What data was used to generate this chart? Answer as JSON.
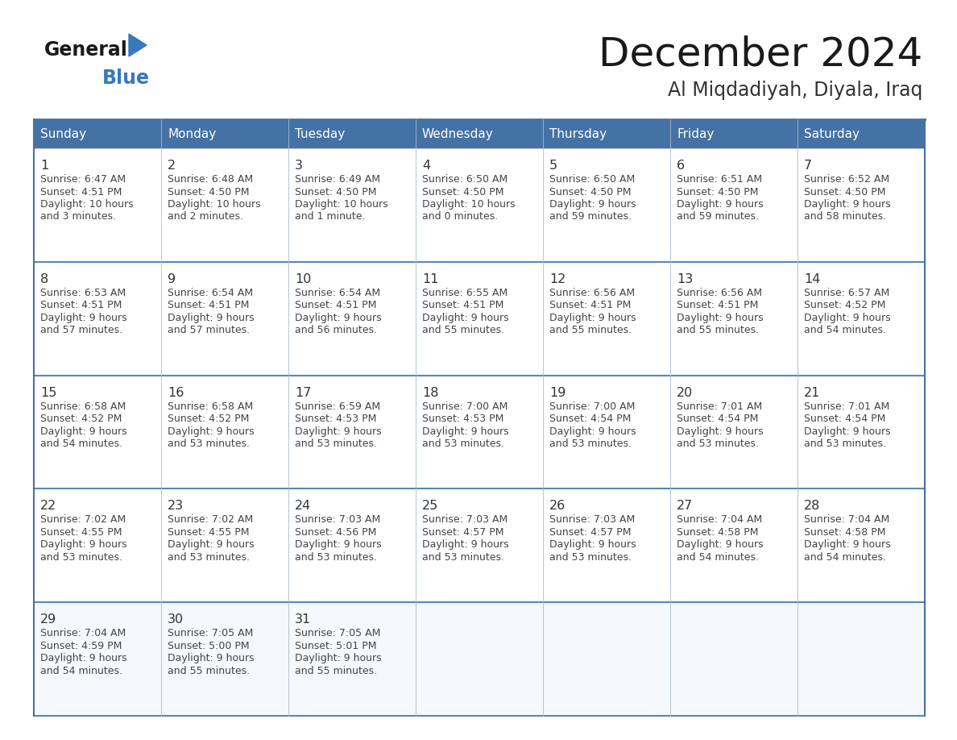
{
  "title": "December 2024",
  "subtitle": "Al Miqdadiyah, Diyala, Iraq",
  "days_of_week": [
    "Sunday",
    "Monday",
    "Tuesday",
    "Wednesday",
    "Thursday",
    "Friday",
    "Saturday"
  ],
  "header_bg": "#4472A4",
  "header_text": "#FFFFFF",
  "border_color": "#4472A4",
  "row_border_color": "#5588BB",
  "day_num_color": "#333333",
  "cell_text_color": "#444444",
  "title_color": "#1a1a1a",
  "subtitle_color": "#333333",
  "general_color": "#1a1a1a",
  "blue_color": "#3878BE",
  "last_row_bg": "#F0F4F8",
  "calendar_data": [
    [
      {
        "day": 1,
        "sunrise": "6:47 AM",
        "sunset": "4:51 PM",
        "daylight": "10 hours\nand 3 minutes."
      },
      {
        "day": 2,
        "sunrise": "6:48 AM",
        "sunset": "4:50 PM",
        "daylight": "10 hours\nand 2 minutes."
      },
      {
        "day": 3,
        "sunrise": "6:49 AM",
        "sunset": "4:50 PM",
        "daylight": "10 hours\nand 1 minute."
      },
      {
        "day": 4,
        "sunrise": "6:50 AM",
        "sunset": "4:50 PM",
        "daylight": "10 hours\nand 0 minutes."
      },
      {
        "day": 5,
        "sunrise": "6:50 AM",
        "sunset": "4:50 PM",
        "daylight": "9 hours\nand 59 minutes."
      },
      {
        "day": 6,
        "sunrise": "6:51 AM",
        "sunset": "4:50 PM",
        "daylight": "9 hours\nand 59 minutes."
      },
      {
        "day": 7,
        "sunrise": "6:52 AM",
        "sunset": "4:50 PM",
        "daylight": "9 hours\nand 58 minutes."
      }
    ],
    [
      {
        "day": 8,
        "sunrise": "6:53 AM",
        "sunset": "4:51 PM",
        "daylight": "9 hours\nand 57 minutes."
      },
      {
        "day": 9,
        "sunrise": "6:54 AM",
        "sunset": "4:51 PM",
        "daylight": "9 hours\nand 57 minutes."
      },
      {
        "day": 10,
        "sunrise": "6:54 AM",
        "sunset": "4:51 PM",
        "daylight": "9 hours\nand 56 minutes."
      },
      {
        "day": 11,
        "sunrise": "6:55 AM",
        "sunset": "4:51 PM",
        "daylight": "9 hours\nand 55 minutes."
      },
      {
        "day": 12,
        "sunrise": "6:56 AM",
        "sunset": "4:51 PM",
        "daylight": "9 hours\nand 55 minutes."
      },
      {
        "day": 13,
        "sunrise": "6:56 AM",
        "sunset": "4:51 PM",
        "daylight": "9 hours\nand 55 minutes."
      },
      {
        "day": 14,
        "sunrise": "6:57 AM",
        "sunset": "4:52 PM",
        "daylight": "9 hours\nand 54 minutes."
      }
    ],
    [
      {
        "day": 15,
        "sunrise": "6:58 AM",
        "sunset": "4:52 PM",
        "daylight": "9 hours\nand 54 minutes."
      },
      {
        "day": 16,
        "sunrise": "6:58 AM",
        "sunset": "4:52 PM",
        "daylight": "9 hours\nand 53 minutes."
      },
      {
        "day": 17,
        "sunrise": "6:59 AM",
        "sunset": "4:53 PM",
        "daylight": "9 hours\nand 53 minutes."
      },
      {
        "day": 18,
        "sunrise": "7:00 AM",
        "sunset": "4:53 PM",
        "daylight": "9 hours\nand 53 minutes."
      },
      {
        "day": 19,
        "sunrise": "7:00 AM",
        "sunset": "4:54 PM",
        "daylight": "9 hours\nand 53 minutes."
      },
      {
        "day": 20,
        "sunrise": "7:01 AM",
        "sunset": "4:54 PM",
        "daylight": "9 hours\nand 53 minutes."
      },
      {
        "day": 21,
        "sunrise": "7:01 AM",
        "sunset": "4:54 PM",
        "daylight": "9 hours\nand 53 minutes."
      }
    ],
    [
      {
        "day": 22,
        "sunrise": "7:02 AM",
        "sunset": "4:55 PM",
        "daylight": "9 hours\nand 53 minutes."
      },
      {
        "day": 23,
        "sunrise": "7:02 AM",
        "sunset": "4:55 PM",
        "daylight": "9 hours\nand 53 minutes."
      },
      {
        "day": 24,
        "sunrise": "7:03 AM",
        "sunset": "4:56 PM",
        "daylight": "9 hours\nand 53 minutes."
      },
      {
        "day": 25,
        "sunrise": "7:03 AM",
        "sunset": "4:57 PM",
        "daylight": "9 hours\nand 53 minutes."
      },
      {
        "day": 26,
        "sunrise": "7:03 AM",
        "sunset": "4:57 PM",
        "daylight": "9 hours\nand 53 minutes."
      },
      {
        "day": 27,
        "sunrise": "7:04 AM",
        "sunset": "4:58 PM",
        "daylight": "9 hours\nand 54 minutes."
      },
      {
        "day": 28,
        "sunrise": "7:04 AM",
        "sunset": "4:58 PM",
        "daylight": "9 hours\nand 54 minutes."
      }
    ],
    [
      {
        "day": 29,
        "sunrise": "7:04 AM",
        "sunset": "4:59 PM",
        "daylight": "9 hours\nand 54 minutes."
      },
      {
        "day": 30,
        "sunrise": "7:05 AM",
        "sunset": "5:00 PM",
        "daylight": "9 hours\nand 55 minutes."
      },
      {
        "day": 31,
        "sunrise": "7:05 AM",
        "sunset": "5:01 PM",
        "daylight": "9 hours\nand 55 minutes."
      },
      null,
      null,
      null,
      null
    ]
  ]
}
